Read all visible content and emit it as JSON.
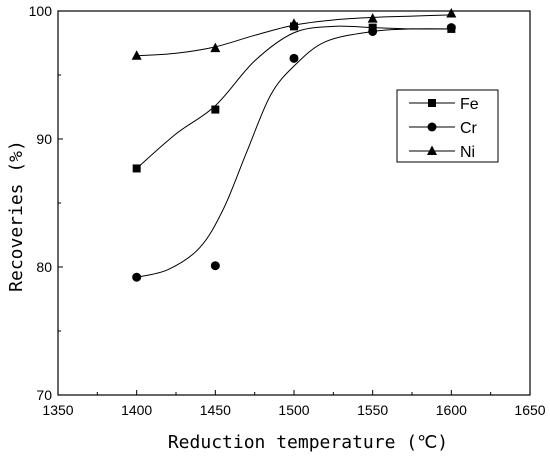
{
  "chart_data": {
    "type": "scatter",
    "xlabel": "Reduction temperature (℃)",
    "ylabel": "Recoveries (%)",
    "xlim": [
      1350,
      1650
    ],
    "ylim": [
      70,
      100
    ],
    "xticks": [
      1350,
      1400,
      1450,
      1500,
      1550,
      1600,
      1650
    ],
    "yticks": [
      70,
      80,
      90,
      100
    ],
    "grid": false,
    "legend_position": "upper-right",
    "series": [
      {
        "name": "Fe",
        "marker": "square",
        "color": "#000000",
        "x": [
          1400,
          1450,
          1500,
          1550,
          1600
        ],
        "y": [
          87.7,
          92.3,
          98.8,
          98.7,
          98.6
        ],
        "curve": [
          [
            1400,
            87.7
          ],
          [
            1425,
            90.4
          ],
          [
            1450,
            92.6
          ],
          [
            1475,
            96.1
          ],
          [
            1500,
            98.3
          ],
          [
            1525,
            98.8
          ],
          [
            1550,
            98.7
          ],
          [
            1575,
            98.6
          ],
          [
            1600,
            98.6
          ]
        ]
      },
      {
        "name": "Cr",
        "marker": "circle",
        "color": "#000000",
        "x": [
          1400,
          1450,
          1500,
          1550,
          1600
        ],
        "y": [
          79.2,
          80.1,
          96.3,
          98.4,
          98.7
        ],
        "curve": [
          [
            1400,
            79.2
          ],
          [
            1420,
            79.8
          ],
          [
            1440,
            81.5
          ],
          [
            1455,
            84.5
          ],
          [
            1470,
            89.0
          ],
          [
            1485,
            93.4
          ],
          [
            1500,
            95.7
          ],
          [
            1520,
            97.6
          ],
          [
            1550,
            98.4
          ],
          [
            1575,
            98.6
          ],
          [
            1600,
            98.6
          ]
        ]
      },
      {
        "name": "Ni",
        "marker": "triangle",
        "color": "#000000",
        "x": [
          1400,
          1450,
          1500,
          1550,
          1600
        ],
        "y": [
          96.5,
          97.1,
          99.0,
          99.4,
          99.8
        ],
        "curve": [
          [
            1400,
            96.5
          ],
          [
            1425,
            96.7
          ],
          [
            1450,
            97.2
          ],
          [
            1475,
            98.1
          ],
          [
            1500,
            98.9
          ],
          [
            1525,
            99.3
          ],
          [
            1550,
            99.5
          ],
          [
            1575,
            99.6
          ],
          [
            1600,
            99.7
          ]
        ]
      }
    ]
  }
}
